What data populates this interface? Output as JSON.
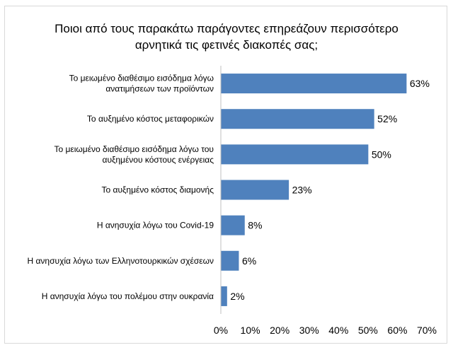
{
  "chart_data": {
    "type": "bar",
    "orientation": "horizontal",
    "title_lines": [
      "Ποιοι από τους παρακάτω παράγοντες επηρεάζουν περισσότερο",
      "αρνητικά τις φετινές διακοπές σας;"
    ],
    "categories": [
      [
        "Το μειωμένο διαθέσιμο εισόδημα λόγω",
        "ανατιμήσεων των προϊόντων"
      ],
      [
        "Το αυξημένο κόστος μεταφορικών"
      ],
      [
        "Το μειωμένο διαθέσιμο εισόδημα λόγω του",
        "αυξημένου κόστους ενέργειας"
      ],
      [
        "Το αυξημένο κόστος διαμονής"
      ],
      [
        "Η ανησυχία λόγω του Covid-19"
      ],
      [
        "Η ανησυχία λόγω των Ελληνοτουρκικών σχέσεων"
      ],
      [
        "Η ανησυχία λόγω του πολέμου στην ουκρανία"
      ]
    ],
    "values": [
      63,
      52,
      50,
      23,
      8,
      6,
      2
    ],
    "value_labels": [
      "63%",
      "52%",
      "50%",
      "23%",
      "8%",
      "6%",
      "2%"
    ],
    "xlim": [
      0,
      70
    ],
    "ticks": [
      0,
      10,
      20,
      30,
      40,
      50,
      60,
      70
    ],
    "tick_labels": [
      "0%",
      "10%",
      "20%",
      "30%",
      "40%",
      "50%",
      "60%",
      "70%"
    ],
    "xlabel": "",
    "ylabel": "",
    "grid": false,
    "legend": "none",
    "bar_color": "#4f81bd",
    "axis_color": "#bfbfbf"
  }
}
